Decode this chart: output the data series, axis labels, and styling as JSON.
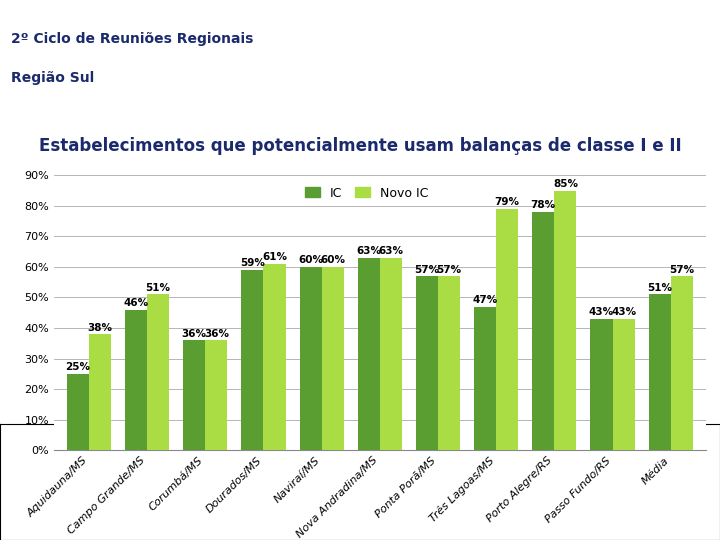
{
  "title": "Estabelecimentos que potencialmente usam balanças de classe I e II",
  "header_line1": "2º Ciclo de Reuniões Regionais",
  "header_line2": "Região Sul",
  "categories": [
    "Aquidauna/MS",
    "Campo Grande/MS",
    "Corumbá/MS",
    "Dourados/MS",
    "Naviraí/MS",
    "Nova Andradina/MS",
    "Ponta Porã/MS",
    "Três Lagoas/MS",
    "Porto Alegre/RS",
    "Passo Fundo/RS",
    "Média"
  ],
  "ic_values": [
    25,
    46,
    36,
    59,
    60,
    63,
    57,
    47,
    78,
    43,
    51
  ],
  "novo_ic_values": [
    38,
    51,
    36,
    61,
    60,
    63,
    57,
    79,
    85,
    43,
    57
  ],
  "ic_color": "#5a9e32",
  "novo_ic_color": "#aadd44",
  "bar_width": 0.38,
  "ylim": [
    0,
    90
  ],
  "yticks": [
    0,
    10,
    20,
    30,
    40,
    50,
    60,
    70,
    80,
    90
  ],
  "ytick_labels": [
    "0%",
    "10%",
    "20%",
    "30%",
    "40%",
    "50%",
    "60%",
    "70%",
    "80%",
    "90%"
  ],
  "bg_color": "#ffffff",
  "header_bg": "#f5eedb",
  "title_color": "#1a2a6c",
  "navy_bar_color": "#1c2f6e",
  "grid_color": "#aaaaaa",
  "legend_ic": "IC",
  "legend_novo": "Novo IC",
  "label_fontsize": 7.5,
  "tick_fontsize": 8,
  "title_fontsize": 12,
  "header_fontsize": 10
}
